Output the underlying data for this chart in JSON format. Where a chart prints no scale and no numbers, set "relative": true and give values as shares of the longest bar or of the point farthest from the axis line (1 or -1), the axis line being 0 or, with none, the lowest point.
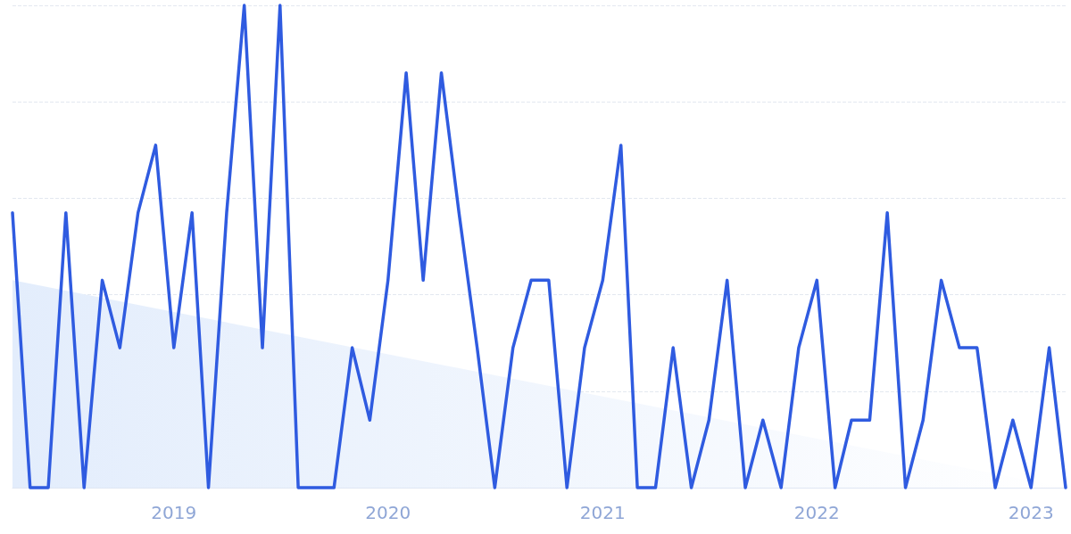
{
  "chart_data": {
    "type": "line",
    "relative": true,
    "grid": "y",
    "marker": "none",
    "line_style": "solid",
    "x": [
      "2018-04",
      "2018-05",
      "2018-06",
      "2018-07",
      "2018-08",
      "2018-09",
      "2018-10",
      "2018-11",
      "2018-12",
      "2019-01",
      "2019-02",
      "2019-03",
      "2019-04",
      "2019-05",
      "2019-06",
      "2019-07",
      "2019-08",
      "2019-09",
      "2019-10",
      "2019-11",
      "2019-12",
      "2020-01",
      "2020-02",
      "2020-03",
      "2020-04",
      "2020-05",
      "2020-06",
      "2020-07",
      "2020-08",
      "2020-09",
      "2020-10",
      "2020-11",
      "2020-12",
      "2021-01",
      "2021-02",
      "2021-03",
      "2021-04",
      "2021-05",
      "2021-06",
      "2021-07",
      "2021-08",
      "2021-09",
      "2021-10",
      "2021-11",
      "2021-12",
      "2022-01",
      "2022-02",
      "2022-03",
      "2022-04",
      "2022-05",
      "2022-06",
      "2022-07",
      "2022-08",
      "2022-09",
      "2022-10",
      "2022-11",
      "2022-12",
      "2023-01",
      "2023-02",
      "2023-03"
    ],
    "xlim": [
      "2018-04",
      "2023-03"
    ],
    "xticks": [
      "2019",
      "2020",
      "2021",
      "2022",
      "2023"
    ],
    "series": [
      {
        "type": "area",
        "color": "#e3edfc",
        "x": [
          "2018-04",
          "2023-03"
        ],
        "values": [
          0.43,
          0
        ]
      },
      {
        "color": "#2f5be0",
        "values": [
          0.57,
          0,
          0,
          0.57,
          0,
          0.43,
          0.29,
          0.57,
          0.71,
          0.29,
          0.57,
          0,
          0.57,
          1,
          0.29,
          1,
          0,
          0,
          0,
          0.29,
          0.14,
          0.43,
          0.86,
          0.43,
          0.86,
          0.57,
          0.29,
          0,
          0.29,
          0.43,
          0.43,
          0,
          0.29,
          0.43,
          0.71,
          0,
          0,
          0.29,
          0,
          0.14,
          0.43,
          0,
          0.14,
          0,
          0.29,
          0.43,
          0,
          0.14,
          0.14,
          0.57,
          0,
          0.14,
          0.43,
          0.29,
          0.29,
          0,
          0.14,
          0,
          0.29,
          0
        ]
      }
    ]
  }
}
